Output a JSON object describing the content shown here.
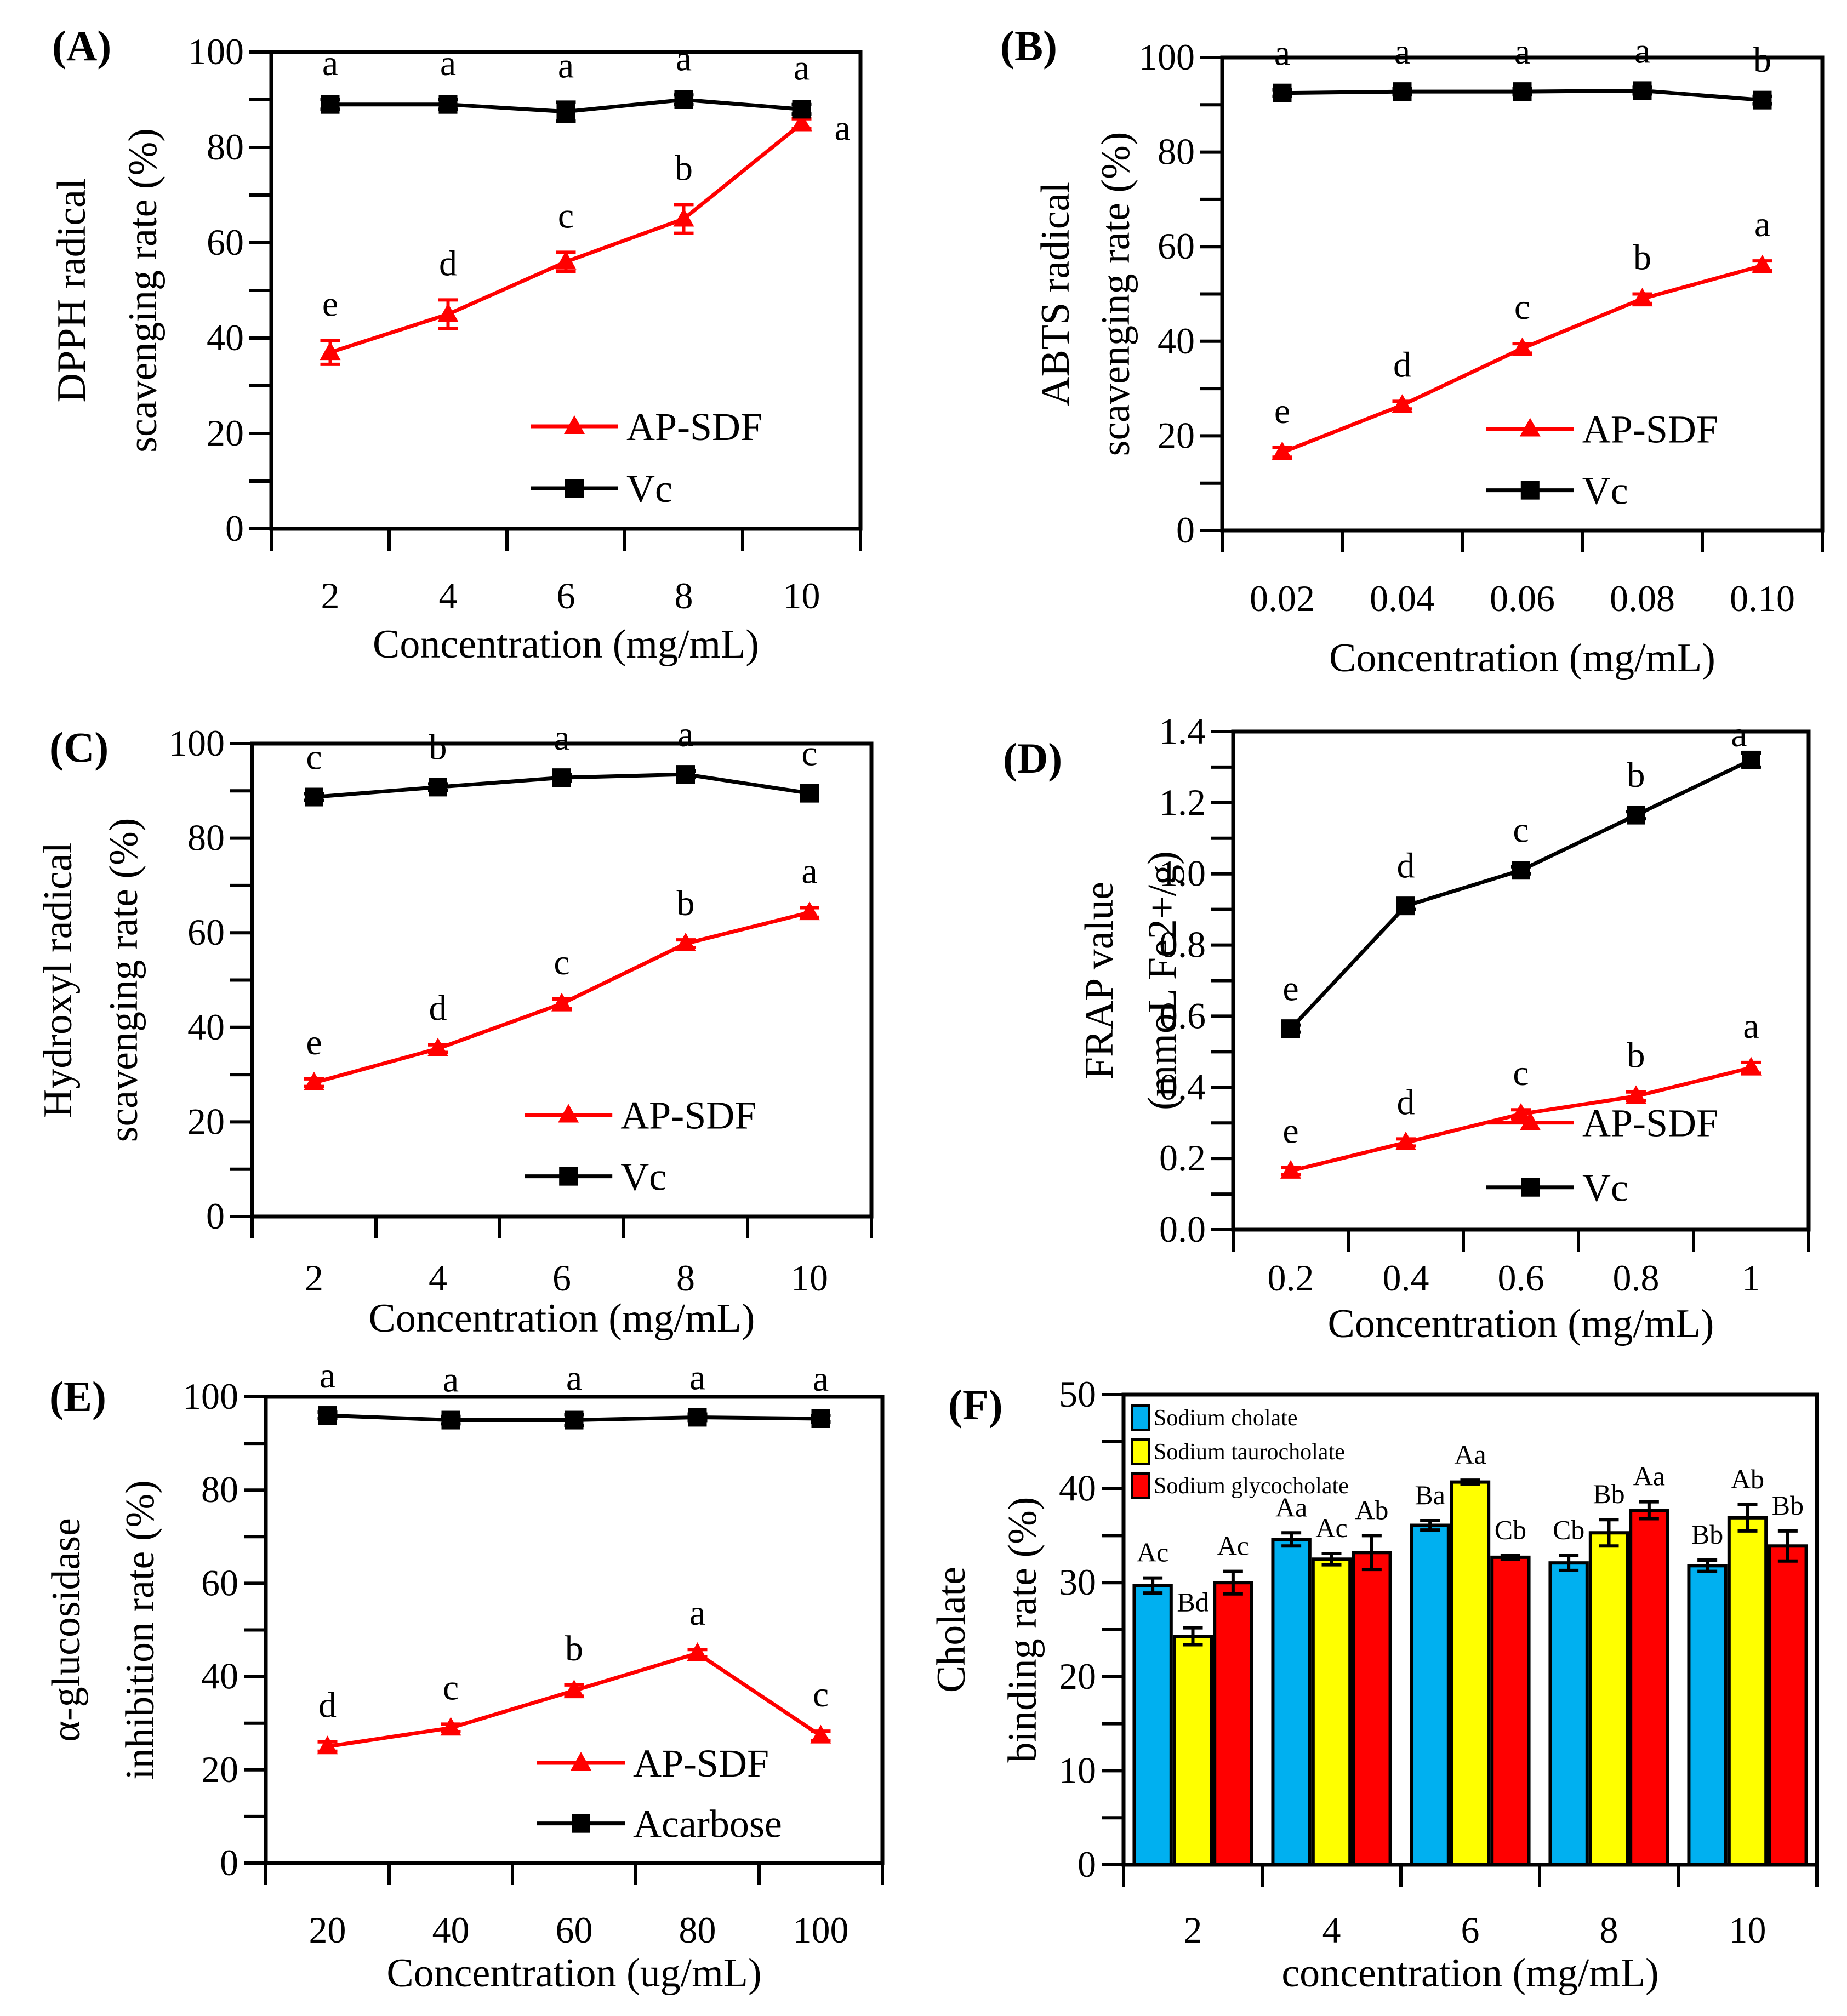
{
  "chart_data": [
    {
      "id": "A",
      "type": "line",
      "panel_label": "(A)",
      "xlabel": "Concentration (mg/mL)",
      "ylabel_lines": [
        "DPPH radical",
        "scavenging rate (%)"
      ],
      "x_ticks": [
        "2",
        "4",
        "6",
        "8",
        "10"
      ],
      "x": [
        2,
        4,
        6,
        8,
        10
      ],
      "ylim": [
        0,
        100
      ],
      "y_ticks": [
        "0",
        "20",
        "40",
        "60",
        "80",
        "100"
      ],
      "y_tick_values": [
        0,
        20,
        40,
        60,
        80,
        100
      ],
      "y_minor_step": 10,
      "legend": [
        "AP-SDF",
        "Vc"
      ],
      "legend_position": "bottom-right",
      "series": [
        {
          "name": "AP-SDF",
          "color": "#ff0000",
          "marker": "triangle",
          "values": [
            37,
            45,
            56,
            65,
            85
          ],
          "errors": [
            2.5,
            3,
            2,
            3,
            1
          ],
          "letters": [
            "e",
            "d",
            "c",
            "b",
            "a"
          ],
          "letter_side": [
            "above",
            "above",
            "above",
            "above",
            "right"
          ]
        },
        {
          "name": "Vc",
          "color": "#000000",
          "marker": "square",
          "values": [
            89,
            89,
            87.5,
            90,
            88
          ],
          "errors": [
            1,
            1,
            2,
            1,
            1
          ],
          "letters": [
            "a",
            "a",
            "a",
            "a",
            "a"
          ],
          "letter_side": [
            "above",
            "above",
            "above",
            "above",
            "above"
          ]
        }
      ]
    },
    {
      "id": "B",
      "type": "line",
      "panel_label": "(B)",
      "xlabel": "Concentration (mg/mL)",
      "ylabel_lines": [
        "ABTS radical",
        "scavenging rate (%)"
      ],
      "x_ticks": [
        "0.02",
        "0.04",
        "0.06",
        "0.08",
        "0.10"
      ],
      "x": [
        0.02,
        0.04,
        0.06,
        0.08,
        0.1
      ],
      "ylim": [
        0,
        100
      ],
      "y_ticks": [
        "0",
        "20",
        "40",
        "60",
        "80",
        "100"
      ],
      "y_tick_values": [
        0,
        20,
        40,
        60,
        80,
        100
      ],
      "y_minor_step": 10,
      "legend": [
        "AP-SDF",
        "Vc"
      ],
      "legend_position": "bottom-right",
      "series": [
        {
          "name": "AP-SDF",
          "color": "#ff0000",
          "marker": "triangle",
          "values": [
            16.5,
            26.5,
            38.5,
            49,
            56
          ],
          "errors": [
            1,
            0.8,
            1,
            1,
            1
          ],
          "letters": [
            "e",
            "d",
            "c",
            "b",
            "a"
          ],
          "letter_side": [
            "above",
            "above",
            "above",
            "above",
            "above"
          ]
        },
        {
          "name": "Vc",
          "color": "#000000",
          "marker": "square",
          "values": [
            92.5,
            92.8,
            92.8,
            93,
            91
          ],
          "errors": [
            0.7,
            0.7,
            0.7,
            0.7,
            0.8
          ],
          "letters": [
            "a",
            "a",
            "a",
            "a",
            "b"
          ],
          "letter_side": [
            "above",
            "above",
            "above",
            "above",
            "above"
          ]
        }
      ]
    },
    {
      "id": "C",
      "type": "line",
      "panel_label": "(C)",
      "xlabel": "Concentration (mg/mL)",
      "ylabel_lines": [
        "Hydroxyl radical",
        "scavenging rate (%)"
      ],
      "x_ticks": [
        "2",
        "4",
        "6",
        "8",
        "10"
      ],
      "x": [
        2,
        4,
        6,
        8,
        10
      ],
      "ylim": [
        0,
        100
      ],
      "y_ticks": [
        "0",
        "20",
        "40",
        "60",
        "80",
        "100"
      ],
      "y_tick_values": [
        0,
        20,
        40,
        60,
        80,
        100
      ],
      "y_minor_step": 10,
      "legend": [
        "AP-SDF",
        "Vc"
      ],
      "legend_position": "bottom-right",
      "series": [
        {
          "name": "AP-SDF",
          "color": "#ff0000",
          "marker": "triangle",
          "values": [
            28.3,
            35.5,
            45,
            57.7,
            64.3
          ],
          "errors": [
            0.8,
            0.8,
            1,
            0.8,
            1
          ],
          "letters": [
            "e",
            "d",
            "c",
            "b",
            "a"
          ],
          "letter_side": [
            "above",
            "above",
            "above",
            "above",
            "above"
          ]
        },
        {
          "name": "Vc",
          "color": "#000000",
          "marker": "square",
          "values": [
            88.7,
            90.8,
            92.8,
            93.5,
            89.5
          ],
          "errors": [
            0.7,
            0.7,
            0.7,
            0.7,
            0.7
          ],
          "letters": [
            "c",
            "b",
            "a",
            "a",
            "c"
          ],
          "letter_side": [
            "above",
            "above",
            "above",
            "above",
            "above"
          ]
        }
      ]
    },
    {
      "id": "D",
      "type": "line",
      "panel_label": "(D)",
      "xlabel": "Concentration (mg/mL)",
      "ylabel_lines": [
        "FRAP value",
        "(mmoL Fe2+/g)"
      ],
      "x_ticks": [
        "0.2",
        "0.4",
        "0.6",
        "0.8",
        "1"
      ],
      "x": [
        0.2,
        0.4,
        0.6,
        0.8,
        1.0
      ],
      "ylim": [
        0,
        1.4
      ],
      "y_ticks": [
        "0.0",
        "0.2",
        "0.4",
        "0.6",
        "0.8",
        "1.0",
        "1.2",
        "1.4"
      ],
      "y_tick_values": [
        0,
        0.2,
        0.4,
        0.6,
        0.8,
        1.0,
        1.2,
        1.4
      ],
      "y_minor_step": 0.1,
      "legend": [
        "AP-SDF",
        "Vc"
      ],
      "legend_position": "bottom-right",
      "series": [
        {
          "name": "AP-SDF",
          "color": "#ff0000",
          "marker": "triangle",
          "values": [
            0.165,
            0.245,
            0.325,
            0.375,
            0.455
          ],
          "errors": [
            0.01,
            0.01,
            0.012,
            0.012,
            0.015
          ],
          "letters": [
            "e",
            "d",
            "c",
            "b",
            "a"
          ],
          "letter_side": [
            "above",
            "above",
            "above",
            "above",
            "above"
          ]
        },
        {
          "name": "Vc",
          "color": "#000000",
          "marker": "square",
          "values": [
            0.565,
            0.91,
            1.01,
            1.165,
            1.32
          ],
          "errors": [
            0.01,
            0.01,
            0.01,
            0.01,
            0.02
          ],
          "letters": [
            "e",
            "d",
            "c",
            "b",
            "a"
          ],
          "letter_side": [
            "above",
            "above",
            "above",
            "above",
            "left-above"
          ]
        }
      ]
    },
    {
      "id": "E",
      "type": "line",
      "panel_label": "(E)",
      "xlabel": "Concentration (ug/mL)",
      "ylabel_lines": [
        "α-glucosidase",
        "inhibition rate (%)"
      ],
      "x_ticks": [
        "20",
        "40",
        "60",
        "80",
        "100"
      ],
      "x": [
        20,
        40,
        60,
        80,
        100
      ],
      "ylim": [
        0,
        100
      ],
      "y_ticks": [
        "0",
        "20",
        "40",
        "60",
        "80",
        "100"
      ],
      "y_tick_values": [
        0,
        20,
        40,
        60,
        80,
        100
      ],
      "y_minor_step": 10,
      "legend": [
        "AP-SDF",
        "Acarbose"
      ],
      "legend_position": "bottom-right",
      "series": [
        {
          "name": "AP-SDF",
          "color": "#ff0000",
          "marker": "triangle",
          "values": [
            25,
            29,
            37,
            45,
            27.3
          ],
          "errors": [
            1,
            0.8,
            1.2,
            0.8,
            1
          ],
          "letters": [
            "d",
            "c",
            "b",
            "a",
            "c"
          ],
          "letter_side": [
            "above",
            "above",
            "above",
            "above",
            "above"
          ]
        },
        {
          "name": "Acarbose",
          "color": "#000000",
          "marker": "square",
          "values": [
            96,
            95,
            95,
            95.6,
            95.3
          ],
          "errors": [
            0.7,
            0.8,
            1.2,
            0.7,
            0.7
          ],
          "letters": [
            "a",
            "a",
            "a",
            "a",
            "a"
          ],
          "letter_side": [
            "above",
            "above",
            "above",
            "above",
            "above"
          ]
        }
      ]
    },
    {
      "id": "F",
      "type": "bar",
      "panel_label": "(F)",
      "xlabel": "concentration (mg/mL)",
      "ylabel_lines": [
        "Cholate",
        "binding rate (%)"
      ],
      "categories": [
        "2",
        "4",
        "6",
        "8",
        "10"
      ],
      "ylim": [
        0,
        50
      ],
      "y_ticks": [
        "0",
        "10",
        "20",
        "30",
        "40",
        "50"
      ],
      "y_tick_values": [
        0,
        10,
        20,
        30,
        40,
        50
      ],
      "y_minor_step": 5,
      "legend_position": "top-left",
      "series": [
        {
          "name": "Sodium cholate",
          "color": "#00b0f0",
          "values": [
            29.7,
            34.6,
            36.1,
            32.1,
            31.8
          ],
          "errors": [
            0.8,
            0.7,
            0.5,
            0.8,
            0.6
          ],
          "letters": [
            "Ac",
            "Aa",
            "Ba",
            "Cb",
            "Bb"
          ]
        },
        {
          "name": "Sodium taurocholate",
          "color": "#ffff00",
          "values": [
            24.3,
            32.5,
            40.7,
            35.3,
            36.9
          ],
          "errors": [
            0.9,
            0.6,
            0.2,
            1.4,
            1.4
          ],
          "letters": [
            "Bd",
            "Ac",
            "Aa",
            "Bb",
            "Ab"
          ]
        },
        {
          "name": "Sodium glycocholate",
          "color": "#ff0000",
          "values": [
            30.0,
            33.2,
            32.7,
            37.7,
            33.9
          ],
          "errors": [
            1.2,
            1.8,
            0.2,
            0.9,
            1.6
          ],
          "letters": [
            "Ac",
            "Ab",
            "Cb",
            "Aa",
            "Bb"
          ]
        }
      ]
    }
  ]
}
